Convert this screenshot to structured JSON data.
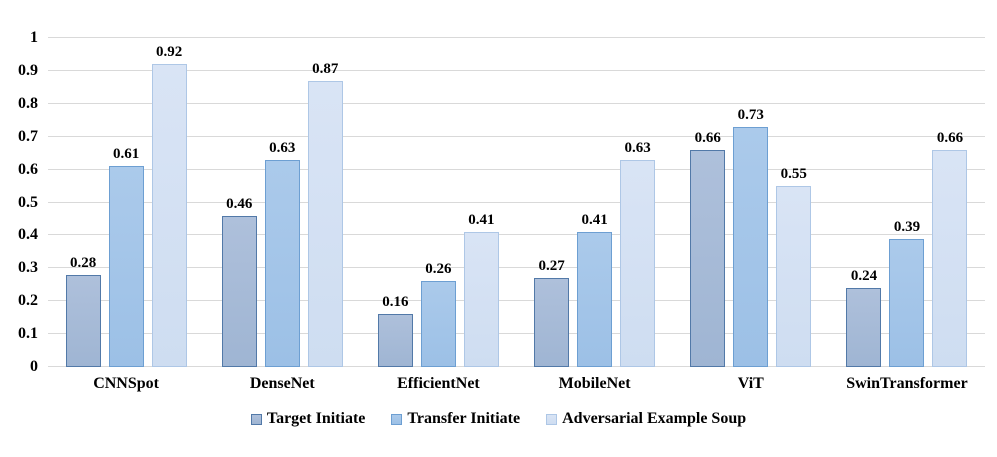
{
  "chart_data": {
    "type": "bar",
    "title": "",
    "xlabel": "",
    "ylabel": "",
    "categories": [
      "CNNSpot",
      "DenseNet",
      "EfficientNet",
      "MobileNet",
      "ViT",
      "SwinTransformer"
    ],
    "series": [
      {
        "name": "Target Initiate",
        "values": [
          0.28,
          0.46,
          0.16,
          0.27,
          0.66,
          0.24
        ],
        "fill": "#9FB5D3",
        "fill_top": "#AEC0DB",
        "border": "#5279A8"
      },
      {
        "name": "Transfer Initiate",
        "values": [
          0.61,
          0.63,
          0.26,
          0.41,
          0.73,
          0.39
        ],
        "fill": "#9CC0E6",
        "fill_top": "#ABCAEB",
        "border": "#6D9FD2"
      },
      {
        "name": "Adversarial Example Soup",
        "values": [
          0.92,
          0.87,
          0.41,
          0.63,
          0.55,
          0.66
        ],
        "fill": "#CEDDF1",
        "fill_top": "#D9E4F5",
        "border": "#AEC7E6"
      }
    ],
    "ylim": [
      0,
      1
    ],
    "yticks": [
      "0",
      "0.1",
      "0.2",
      "0.3",
      "0.4",
      "0.5",
      "0.6",
      "0.7",
      "0.8",
      "0.9",
      "1"
    ],
    "grid": true,
    "gridline_color": "#D9D9D9",
    "legend_position": "bottom",
    "value_label_decimals": 2,
    "text_color": "#000000",
    "background_color": "#FFFFFF"
  }
}
